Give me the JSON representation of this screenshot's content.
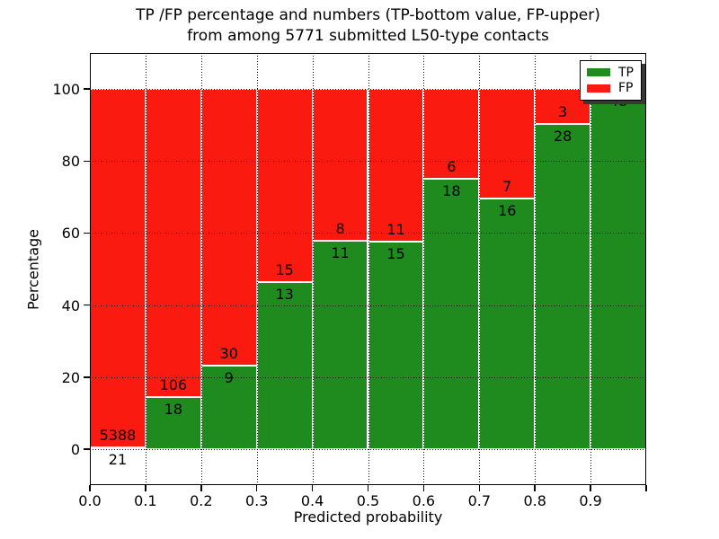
{
  "title": {
    "line1": "TP /FP percentage and numbers (TP-bottom value, FP-upper)",
    "line2": "from among 5771 submitted L50-type contacts"
  },
  "axes": {
    "xlabel": "Predicted probability",
    "ylabel": "Percentage",
    "x_tick_labels": [
      "0.0",
      "0.1",
      "0.2",
      "0.3",
      "0.4",
      "0.5",
      "0.6",
      "0.7",
      "0.8",
      "0.9"
    ],
    "y_tick_labels": [
      "0",
      "20",
      "40",
      "60",
      "80",
      "100"
    ],
    "y_tick_values": [
      0,
      20,
      40,
      60,
      80,
      100
    ]
  },
  "legend": {
    "items": [
      {
        "label": "TP",
        "color": "#1f8b1f"
      },
      {
        "label": "FP",
        "color": "#fa1a10"
      }
    ]
  },
  "chart_data": {
    "type": "bar",
    "stacked": true,
    "normalized": "percent",
    "title": "TP /FP percentage and numbers (TP-bottom value, FP-upper) from among 5771 submitted L50-type contacts",
    "xlabel": "Predicted probability",
    "ylabel": "Percentage",
    "xlim": [
      0.0,
      1.0
    ],
    "ylim": [
      -10,
      110
    ],
    "grid": true,
    "legend_position": "upper right",
    "total_contacts": 5771,
    "tp_color": "#1f8b1f",
    "fp_color": "#fa1a10",
    "bins": [
      {
        "x_start": 0.0,
        "x_end": 0.1,
        "tp": 21,
        "fp": 5388,
        "fp_label_visible": true
      },
      {
        "x_start": 0.1,
        "x_end": 0.2,
        "tp": 18,
        "fp": 106,
        "fp_label_visible": true
      },
      {
        "x_start": 0.2,
        "x_end": 0.3,
        "tp": 9,
        "fp": 30,
        "fp_label_visible": true
      },
      {
        "x_start": 0.3,
        "x_end": 0.4,
        "tp": 13,
        "fp": 15,
        "fp_label_visible": true
      },
      {
        "x_start": 0.4,
        "x_end": 0.5,
        "tp": 11,
        "fp": 8,
        "fp_label_visible": true
      },
      {
        "x_start": 0.5,
        "x_end": 0.6,
        "tp": 15,
        "fp": 11,
        "fp_label_visible": true
      },
      {
        "x_start": 0.6,
        "x_end": 0.7,
        "tp": 18,
        "fp": 6,
        "fp_label_visible": true
      },
      {
        "x_start": 0.7,
        "x_end": 0.8,
        "tp": 16,
        "fp": 7,
        "fp_label_visible": true
      },
      {
        "x_start": 0.8,
        "x_end": 0.9,
        "tp": 28,
        "fp": 3,
        "fp_label_visible": true
      },
      {
        "x_start": 0.9,
        "x_end": 1.0,
        "tp": 48,
        "fp": 0,
        "fp_label_visible": false
      }
    ]
  }
}
